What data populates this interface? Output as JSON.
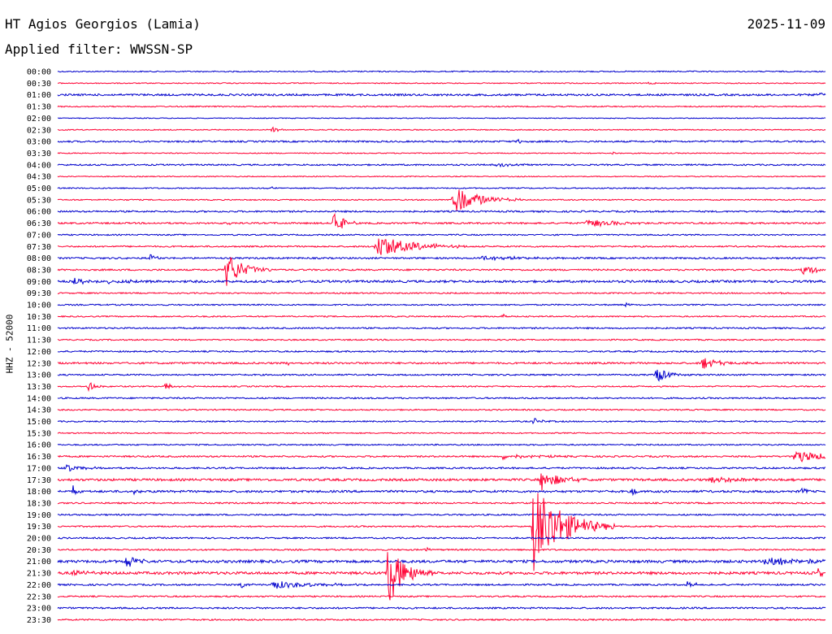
{
  "header": {
    "station": "HT Agios Georgios (Lamia)",
    "date": "2025-11-09",
    "filter": "Applied filter: WWSSN-SP"
  },
  "chart_data": {
    "type": "line",
    "title": "HT Agios Georgios (Lamia)",
    "subtitle": "Applied filter: WWSSN-SP",
    "ylabel": "HHZ - 52000",
    "xlabel": "",
    "row_labels": [
      "00:00",
      "00:30",
      "01:00",
      "01:30",
      "02:00",
      "02:30",
      "03:00",
      "03:30",
      "04:00",
      "04:30",
      "05:00",
      "05:30",
      "06:00",
      "06:30",
      "07:00",
      "07:30",
      "08:00",
      "08:30",
      "09:00",
      "09:30",
      "10:00",
      "10:30",
      "11:00",
      "11:30",
      "12:00",
      "12:30",
      "13:00",
      "13:30",
      "14:00",
      "14:30",
      "15:00",
      "15:30",
      "16:00",
      "16:30",
      "17:00",
      "17:30",
      "18:00",
      "18:30",
      "19:00",
      "19:30",
      "20:00",
      "20:30",
      "21:00",
      "21:30",
      "22:00",
      "22:30",
      "23:00",
      "23:30"
    ],
    "trace_colors": [
      "#0000cc",
      "#ff0033"
    ],
    "row_noise": [
      0.7,
      0.6,
      1.2,
      0.7,
      0.5,
      0.6,
      1.0,
      0.6,
      0.9,
      0.6,
      0.7,
      0.7,
      1.0,
      1.0,
      0.8,
      0.9,
      1.0,
      1.0,
      1.4,
      0.8,
      0.8,
      0.8,
      0.9,
      0.8,
      0.9,
      1.1,
      0.9,
      0.8,
      0.9,
      0.8,
      0.8,
      0.7,
      0.8,
      1.0,
      1.0,
      1.4,
      1.3,
      0.9,
      0.9,
      0.9,
      0.9,
      0.9,
      1.6,
      1.6,
      1.0,
      0.9,
      1.0,
      0.9
    ],
    "events": [
      {
        "row": 1,
        "x": 0.77,
        "amp": 2,
        "dur": 0.006
      },
      {
        "row": 2,
        "x": 0.99,
        "amp": 4,
        "dur": 0.012
      },
      {
        "row": 5,
        "x": 0.28,
        "amp": 3,
        "dur": 0.008
      },
      {
        "row": 6,
        "x": 0.6,
        "amp": 4,
        "dur": 0.005
      },
      {
        "row": 7,
        "x": 0.72,
        "amp": 3,
        "dur": 0.01
      },
      {
        "row": 8,
        "x": 0.57,
        "amp": 3,
        "dur": 0.015
      },
      {
        "row": 10,
        "x": 0.275,
        "amp": 4,
        "dur": 0.004
      },
      {
        "row": 11,
        "x": 0.515,
        "amp": 18,
        "dur": 0.03
      },
      {
        "row": 13,
        "x": 0.22,
        "amp": 3,
        "dur": 0.006
      },
      {
        "row": 13,
        "x": 0.36,
        "amp": 20,
        "dur": 0.01
      },
      {
        "row": 13,
        "x": 0.69,
        "amp": 6,
        "dur": 0.03
      },
      {
        "row": 15,
        "x": 0.415,
        "amp": 16,
        "dur": 0.04
      },
      {
        "row": 16,
        "x": 0.12,
        "amp": 7,
        "dur": 0.006
      },
      {
        "row": 16,
        "x": 0.55,
        "amp": 3,
        "dur": 0.05
      },
      {
        "row": 17,
        "x": 0.22,
        "amp": 22,
        "dur": 0.02
      },
      {
        "row": 17,
        "x": 0.97,
        "amp": 5,
        "dur": 0.03
      },
      {
        "row": 18,
        "x": 0.02,
        "amp": 4,
        "dur": 0.05
      },
      {
        "row": 19,
        "x": 0.94,
        "amp": 2,
        "dur": 0.005
      },
      {
        "row": 20,
        "x": 0.74,
        "amp": 3,
        "dur": 0.006
      },
      {
        "row": 21,
        "x": 0.58,
        "amp": 4,
        "dur": 0.005
      },
      {
        "row": 25,
        "x": 0.84,
        "amp": 8,
        "dur": 0.02
      },
      {
        "row": 25,
        "x": 0.3,
        "amp": 3,
        "dur": 0.004
      },
      {
        "row": 26,
        "x": 0.78,
        "amp": 10,
        "dur": 0.015
      },
      {
        "row": 27,
        "x": 0.04,
        "amp": 8,
        "dur": 0.008
      },
      {
        "row": 27,
        "x": 0.14,
        "amp": 5,
        "dur": 0.008
      },
      {
        "row": 30,
        "x": 0.62,
        "amp": 4,
        "dur": 0.01
      },
      {
        "row": 33,
        "x": 0.96,
        "amp": 8,
        "dur": 0.04
      },
      {
        "row": 33,
        "x": 0.58,
        "amp": 3,
        "dur": 0.04
      },
      {
        "row": 34,
        "x": 0.01,
        "amp": 5,
        "dur": 0.02
      },
      {
        "row": 35,
        "x": 0.63,
        "amp": 14,
        "dur": 0.02
      },
      {
        "row": 35,
        "x": 0.85,
        "amp": 4,
        "dur": 0.04
      },
      {
        "row": 36,
        "x": 0.02,
        "amp": 7,
        "dur": 0.004
      },
      {
        "row": 36,
        "x": 0.1,
        "amp": 4,
        "dur": 0.006
      },
      {
        "row": 36,
        "x": 0.75,
        "amp": 6,
        "dur": 0.004
      },
      {
        "row": 36,
        "x": 0.97,
        "amp": 7,
        "dur": 0.004
      },
      {
        "row": 39,
        "x": 0.62,
        "amp": 55,
        "dur": 0.035
      },
      {
        "row": 41,
        "x": 0.48,
        "amp": 4,
        "dur": 0.004
      },
      {
        "row": 42,
        "x": 0.09,
        "amp": 11,
        "dur": 0.01
      },
      {
        "row": 42,
        "x": 0.92,
        "amp": 5,
        "dur": 0.06
      },
      {
        "row": 43,
        "x": 0.43,
        "amp": 40,
        "dur": 0.02
      },
      {
        "row": 43,
        "x": 0.02,
        "amp": 5,
        "dur": 0.015
      },
      {
        "row": 43,
        "x": 0.99,
        "amp": 5,
        "dur": 0.01
      },
      {
        "row": 44,
        "x": 0.24,
        "amp": 4,
        "dur": 0.008
      },
      {
        "row": 44,
        "x": 0.28,
        "amp": 5,
        "dur": 0.05
      },
      {
        "row": 44,
        "x": 0.82,
        "amp": 4,
        "dur": 0.01
      }
    ]
  }
}
